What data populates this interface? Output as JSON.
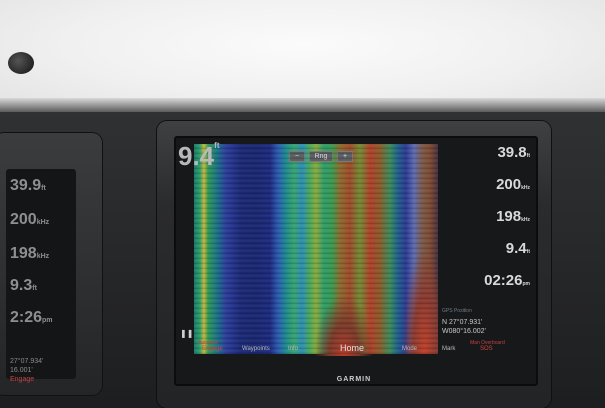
{
  "brand": "GARMIN",
  "sonar": {
    "depth": "9.4",
    "depth_unit": "ft",
    "zoom_minus": "−",
    "zoom_label": "Rng",
    "zoom_plus": "+"
  },
  "data_fields": [
    {
      "value": "39.8",
      "unit": "ft"
    },
    {
      "value": "200",
      "unit": "kHz"
    },
    {
      "value": "198",
      "unit": "kHz"
    },
    {
      "value": "9.4",
      "unit": "ft"
    },
    {
      "value": "02:26",
      "unit": "pm"
    }
  ],
  "position": {
    "label": "GPS Position",
    "lat": "N  27°07.931'",
    "lon": "W080°16.002'"
  },
  "menu": {
    "engage_top": "Autopilot",
    "engage": "Engage",
    "waypoints": "Waypoints",
    "info": "Info",
    "home": "Home",
    "mode": "Mode",
    "mark": "Mark",
    "sos_top": "Man Overboard",
    "sos": "SOS"
  },
  "left_unit": {
    "values": [
      {
        "value": "39.9",
        "unit": "ft"
      },
      {
        "value": "200",
        "unit": "kHz"
      },
      {
        "value": "198",
        "unit": "kHz"
      },
      {
        "value": "9.3",
        "unit": "ft"
      },
      {
        "value": "2:26",
        "unit": "pm"
      }
    ],
    "lat": "27°07.934'",
    "lon": "16.001'",
    "engage": "Engage"
  }
}
